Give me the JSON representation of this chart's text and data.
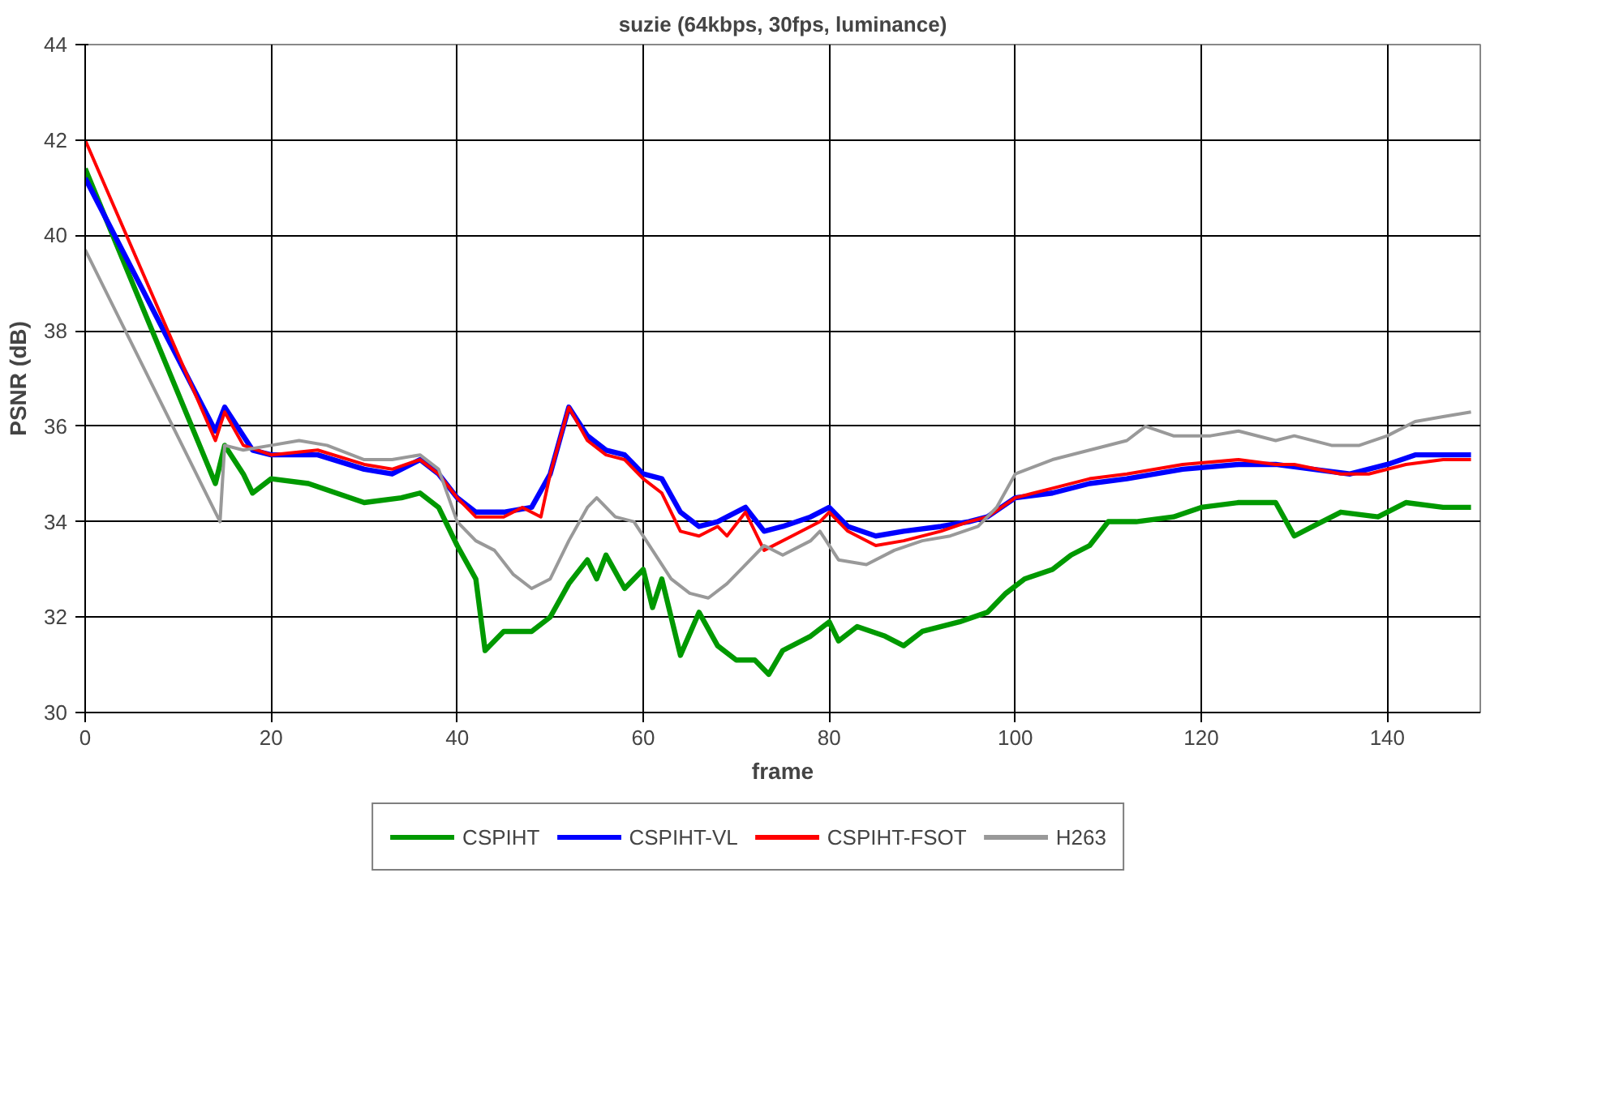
{
  "chart_data": {
    "type": "line",
    "title": "suzie (64kbps, 30fps, luminance)",
    "xlabel": "frame",
    "ylabel": "PSNR (dB)",
    "xlim": [
      0,
      150
    ],
    "xticks": [
      0,
      20,
      40,
      60,
      80,
      100,
      120,
      140
    ],
    "ylim": [
      30,
      44
    ],
    "yticks": [
      30,
      32,
      34,
      36,
      38,
      40,
      42,
      44
    ],
    "grid": true,
    "legend": "bottom",
    "marker": "none",
    "line_style": "solid",
    "series": [
      {
        "name": "CSPIHT",
        "color": "#009900",
        "x": [
          0,
          14,
          15,
          17,
          18,
          20,
          24,
          27,
          30,
          34,
          36,
          38,
          40,
          42,
          43,
          45,
          48,
          50,
          52,
          54,
          55,
          56,
          58,
          60,
          61,
          62,
          64,
          66,
          68,
          70,
          72,
          73.5,
          75,
          78,
          80,
          81,
          83,
          86,
          88,
          90,
          94,
          97,
          99,
          101,
          104,
          106,
          108,
          110,
          113,
          117,
          120,
          124,
          128,
          130,
          132,
          135,
          139,
          142,
          146,
          149
        ],
        "values": [
          41.4,
          34.8,
          35.6,
          35.0,
          34.6,
          34.9,
          34.8,
          34.6,
          34.4,
          34.5,
          34.6,
          34.3,
          33.5,
          32.8,
          31.3,
          31.7,
          31.7,
          32.0,
          32.7,
          33.2,
          32.8,
          33.3,
          32.6,
          33.0,
          32.2,
          32.8,
          31.2,
          32.1,
          31.4,
          31.1,
          31.1,
          30.8,
          31.3,
          31.6,
          31.9,
          31.5,
          31.8,
          31.6,
          31.4,
          31.7,
          31.9,
          32.1,
          32.5,
          32.8,
          33.0,
          33.3,
          33.5,
          34.0,
          34.0,
          34.1,
          34.3,
          34.4,
          34.4,
          33.7,
          33.9,
          34.2,
          34.1,
          34.4,
          34.3,
          34.3
        ]
      },
      {
        "name": "CSPIHT-VL",
        "color": "#0000ff",
        "x": [
          0,
          14,
          15,
          18,
          20,
          25,
          30,
          33,
          36,
          38,
          40,
          42,
          45,
          48,
          50,
          52,
          54,
          56,
          58,
          60,
          62,
          64,
          66,
          68,
          71,
          73,
          75,
          78,
          80,
          82,
          85,
          88,
          92,
          95,
          97,
          100,
          104,
          108,
          112,
          118,
          124,
          128,
          132,
          136,
          140,
          143,
          149
        ],
        "values": [
          41.2,
          35.9,
          36.4,
          35.5,
          35.4,
          35.4,
          35.1,
          35.0,
          35.3,
          35.0,
          34.5,
          34.2,
          34.2,
          34.3,
          35.0,
          36.4,
          35.8,
          35.5,
          35.4,
          35.0,
          34.9,
          34.2,
          33.9,
          34.0,
          34.3,
          33.8,
          33.9,
          34.1,
          34.3,
          33.9,
          33.7,
          33.8,
          33.9,
          34.0,
          34.1,
          34.5,
          34.6,
          34.8,
          34.9,
          35.1,
          35.2,
          35.2,
          35.1,
          35.0,
          35.2,
          35.4,
          35.4
        ]
      },
      {
        "name": "CSPIHT-FSOT",
        "color": "#ff0000",
        "x": [
          0,
          14,
          15,
          17,
          20,
          25,
          30,
          33,
          36,
          38,
          40,
          42,
          45,
          47,
          49,
          50,
          52,
          54,
          56,
          58,
          60,
          62,
          64,
          66,
          68,
          69,
          71,
          73,
          76,
          79,
          80,
          82,
          85,
          88,
          92,
          95,
          97,
          100,
          104,
          108,
          112,
          118,
          124,
          128,
          130,
          135,
          138,
          142,
          146,
          149
        ],
        "values": [
          42.0,
          35.7,
          36.3,
          35.6,
          35.4,
          35.5,
          35.2,
          35.1,
          35.3,
          35.0,
          34.5,
          34.1,
          34.1,
          34.3,
          34.1,
          35.0,
          36.4,
          35.7,
          35.4,
          35.3,
          34.9,
          34.6,
          33.8,
          33.7,
          33.9,
          33.7,
          34.2,
          33.4,
          33.7,
          34.0,
          34.2,
          33.8,
          33.5,
          33.6,
          33.8,
          34.0,
          34.1,
          34.5,
          34.7,
          34.9,
          35.0,
          35.2,
          35.3,
          35.2,
          35.2,
          35.0,
          35.0,
          35.2,
          35.3,
          35.3
        ]
      },
      {
        "name": "H263",
        "color": "#999999",
        "x": [
          0,
          14.5,
          15,
          17,
          20,
          23,
          26,
          30,
          33,
          36,
          38,
          40,
          42,
          44,
          46,
          48,
          50,
          52,
          54,
          55,
          57,
          59,
          61,
          63,
          65,
          67,
          69,
          71,
          73,
          75,
          78,
          79,
          81,
          84,
          87,
          90,
          93,
          96,
          98,
          100,
          104,
          108,
          112,
          114,
          117,
          121,
          124,
          128,
          130,
          134,
          137,
          140,
          143,
          146,
          149
        ],
        "values": [
          39.7,
          34.0,
          35.6,
          35.5,
          35.6,
          35.7,
          35.6,
          35.3,
          35.3,
          35.4,
          35.1,
          34.0,
          33.6,
          33.4,
          32.9,
          32.6,
          32.8,
          33.6,
          34.3,
          34.5,
          34.1,
          34.0,
          33.4,
          32.8,
          32.5,
          32.4,
          32.7,
          33.1,
          33.5,
          33.3,
          33.6,
          33.8,
          33.2,
          33.1,
          33.4,
          33.6,
          33.7,
          33.9,
          34.3,
          35.0,
          35.3,
          35.5,
          35.7,
          36.0,
          35.8,
          35.8,
          35.9,
          35.7,
          35.8,
          35.6,
          35.6,
          35.8,
          36.1,
          36.2,
          36.3
        ]
      }
    ]
  }
}
